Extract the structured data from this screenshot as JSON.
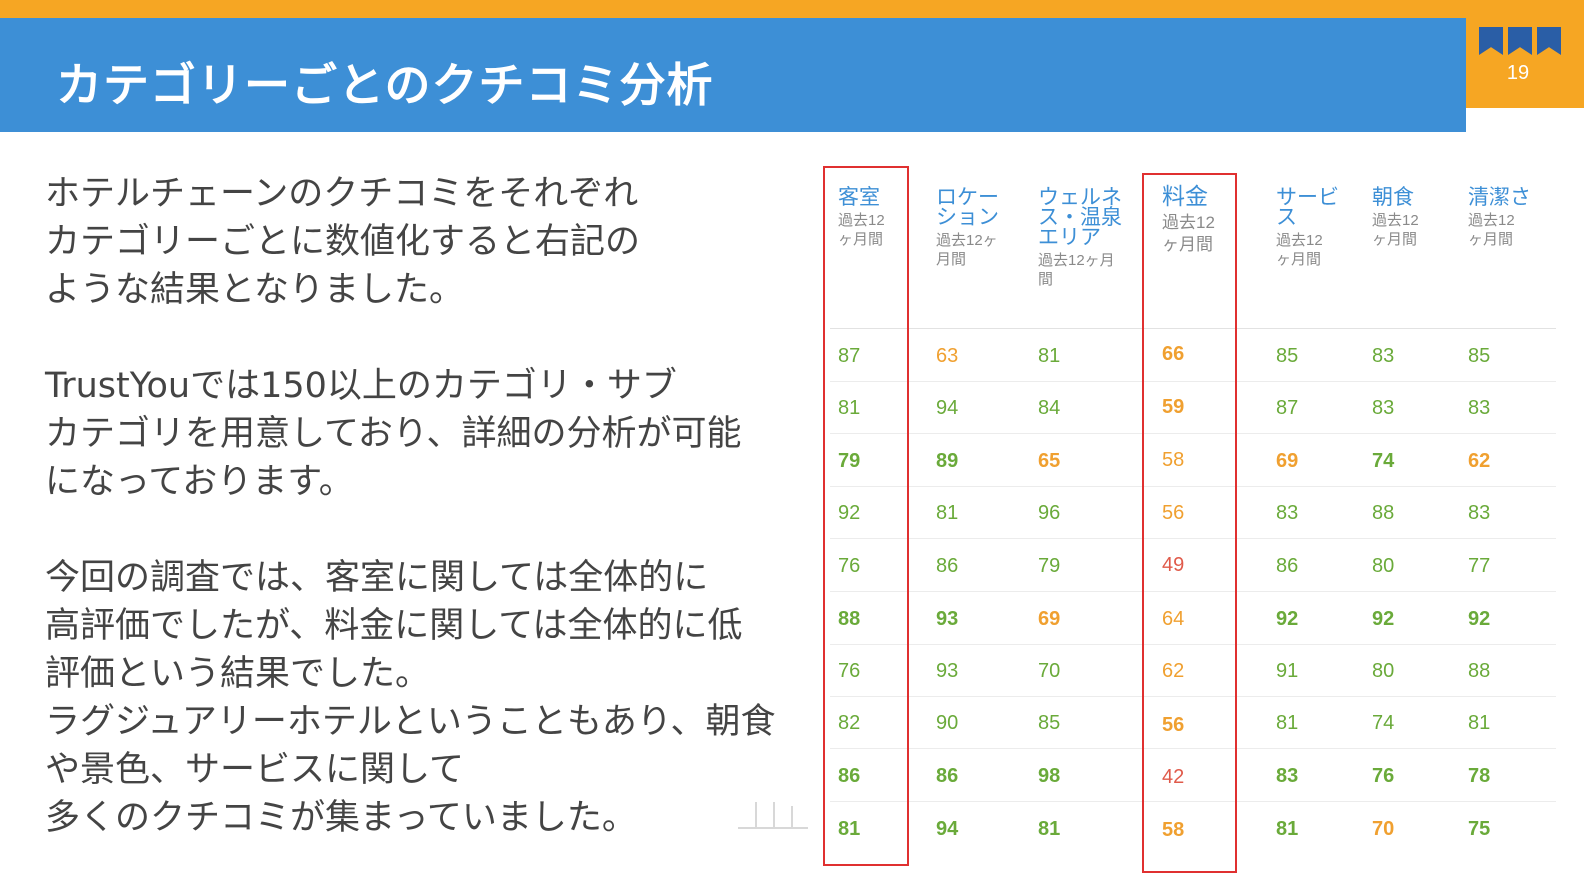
{
  "slide": {
    "title": "カテゴリーごとのクチコミ分析",
    "page_number": "19",
    "accent_color": "#f6a623",
    "title_bar_color": "#3d8fd6"
  },
  "body": {
    "paragraphs": [
      "ホテルチェーンのクチコミをそれぞれ\nカテゴリーごとに数値化すると右記の\nような結果となりました。",
      "TrustYouでは150以上のカテゴリ・サブ\nカテゴリを用意しており、詳細の分析が可能\nになっております。",
      "今回の調査では、客室に関しては全体的に\n高評価でしたが、料金に関しては全体的に低\n評価という結果でした。\nラグジュアリーホテルということもあり、朝食\nや景色、サービスに関して\n多くのクチコミが集まっていました。"
    ]
  },
  "score_table": {
    "columns": [
      {
        "name": "客室",
        "sub": "過去12\nヶ月間",
        "highlighted": true
      },
      {
        "name": "ロケー\nション",
        "sub": "過去12ヶ\n月間",
        "highlighted": false
      },
      {
        "name": "ウェルネ\nス・温泉\nエリア",
        "sub": "過去12ヶ月\n間",
        "highlighted": false
      },
      {
        "name": "料金",
        "sub": "過去12\nヶ月間",
        "highlighted": true
      },
      {
        "name": "サービ\nス",
        "sub": "過去12\nヶ月間",
        "highlighted": false
      },
      {
        "name": "朝食",
        "sub": "過去12\nヶ月間",
        "highlighted": false
      },
      {
        "name": "清潔さ",
        "sub": "過去12\nヶ月間",
        "highlighted": false
      }
    ],
    "rows": [
      [
        {
          "v": "87",
          "c": "green",
          "b": false
        },
        {
          "v": "63",
          "c": "orange",
          "b": false
        },
        {
          "v": "81",
          "c": "green",
          "b": false
        },
        {
          "v": "66",
          "c": "orange",
          "b": true
        },
        {
          "v": "85",
          "c": "green",
          "b": false
        },
        {
          "v": "83",
          "c": "green",
          "b": false
        },
        {
          "v": "85",
          "c": "green",
          "b": false
        }
      ],
      [
        {
          "v": "81",
          "c": "green",
          "b": false
        },
        {
          "v": "94",
          "c": "green",
          "b": false
        },
        {
          "v": "84",
          "c": "green",
          "b": false
        },
        {
          "v": "59",
          "c": "orange",
          "b": true
        },
        {
          "v": "87",
          "c": "green",
          "b": false
        },
        {
          "v": "83",
          "c": "green",
          "b": false
        },
        {
          "v": "83",
          "c": "green",
          "b": false
        }
      ],
      [
        {
          "v": "79",
          "c": "green",
          "b": true
        },
        {
          "v": "89",
          "c": "green",
          "b": true
        },
        {
          "v": "65",
          "c": "orange",
          "b": true
        },
        {
          "v": "58",
          "c": "orange",
          "b": false
        },
        {
          "v": "69",
          "c": "orange",
          "b": true
        },
        {
          "v": "74",
          "c": "green",
          "b": true
        },
        {
          "v": "62",
          "c": "orange",
          "b": true
        }
      ],
      [
        {
          "v": "92",
          "c": "green",
          "b": false
        },
        {
          "v": "81",
          "c": "green",
          "b": false
        },
        {
          "v": "96",
          "c": "green",
          "b": false
        },
        {
          "v": "56",
          "c": "orange",
          "b": false
        },
        {
          "v": "83",
          "c": "green",
          "b": false
        },
        {
          "v": "88",
          "c": "green",
          "b": false
        },
        {
          "v": "83",
          "c": "green",
          "b": false
        }
      ],
      [
        {
          "v": "76",
          "c": "green",
          "b": false
        },
        {
          "v": "86",
          "c": "green",
          "b": false
        },
        {
          "v": "79",
          "c": "green",
          "b": false
        },
        {
          "v": "49",
          "c": "red",
          "b": false
        },
        {
          "v": "86",
          "c": "green",
          "b": false
        },
        {
          "v": "80",
          "c": "green",
          "b": false
        },
        {
          "v": "77",
          "c": "green",
          "b": false
        }
      ],
      [
        {
          "v": "88",
          "c": "green",
          "b": true
        },
        {
          "v": "93",
          "c": "green",
          "b": true
        },
        {
          "v": "69",
          "c": "orange",
          "b": true
        },
        {
          "v": "64",
          "c": "orange",
          "b": false
        },
        {
          "v": "92",
          "c": "green",
          "b": true
        },
        {
          "v": "92",
          "c": "green",
          "b": true
        },
        {
          "v": "92",
          "c": "green",
          "b": true
        }
      ],
      [
        {
          "v": "76",
          "c": "green",
          "b": false
        },
        {
          "v": "93",
          "c": "green",
          "b": false
        },
        {
          "v": "70",
          "c": "green",
          "b": false
        },
        {
          "v": "62",
          "c": "orange",
          "b": false
        },
        {
          "v": "91",
          "c": "green",
          "b": false
        },
        {
          "v": "80",
          "c": "green",
          "b": false
        },
        {
          "v": "88",
          "c": "green",
          "b": false
        }
      ],
      [
        {
          "v": "82",
          "c": "green",
          "b": false
        },
        {
          "v": "90",
          "c": "green",
          "b": false
        },
        {
          "v": "85",
          "c": "green",
          "b": false
        },
        {
          "v": "56",
          "c": "orange",
          "b": true
        },
        {
          "v": "81",
          "c": "green",
          "b": false
        },
        {
          "v": "74",
          "c": "green",
          "b": false
        },
        {
          "v": "81",
          "c": "green",
          "b": false
        }
      ],
      [
        {
          "v": "86",
          "c": "green",
          "b": true
        },
        {
          "v": "86",
          "c": "green",
          "b": true
        },
        {
          "v": "98",
          "c": "green",
          "b": true
        },
        {
          "v": "42",
          "c": "red",
          "b": false
        },
        {
          "v": "83",
          "c": "green",
          "b": true
        },
        {
          "v": "76",
          "c": "green",
          "b": true
        },
        {
          "v": "78",
          "c": "green",
          "b": true
        }
      ],
      [
        {
          "v": "81",
          "c": "green",
          "b": true
        },
        {
          "v": "94",
          "c": "green",
          "b": true
        },
        {
          "v": "81",
          "c": "green",
          "b": true
        },
        {
          "v": "58",
          "c": "orange",
          "b": true
        },
        {
          "v": "81",
          "c": "green",
          "b": true
        },
        {
          "v": "70",
          "c": "orange",
          "b": true
        },
        {
          "v": "75",
          "c": "green",
          "b": true
        }
      ]
    ],
    "score_colors": {
      "green": "#6aaa3a",
      "orange": "#f0a030",
      "red": "#e05a4a"
    },
    "highlight_color": "#e03030"
  },
  "icons": [
    "bookmark-flags-icon",
    "watermark-mark-icon"
  ]
}
